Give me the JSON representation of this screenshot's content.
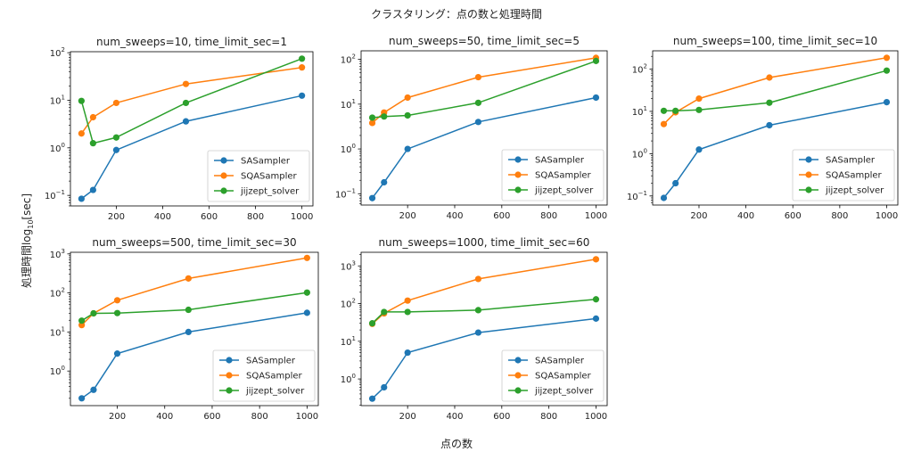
{
  "figure": {
    "title": "クラスタリング：点の数と処理時間",
    "xlabel": "点の数",
    "ylabel_main": "処理時間log",
    "ylabel_sub": "10",
    "ylabel_unit": "[sec]"
  },
  "colors": {
    "SASampler": "#1f77b4",
    "SQASampler": "#ff7f0e",
    "jijzept_solver": "#2ca02c"
  },
  "chart_data": [
    {
      "type": "line",
      "title": "num_sweeps=10, time_limit_sec=1",
      "yscale": "log",
      "ylim": [
        0.06,
        105
      ],
      "xlim": [
        2.5,
        1047.5
      ],
      "xticks": [
        200,
        400,
        600,
        800,
        1000
      ],
      "legend": "lower right",
      "x": [
        50,
        100,
        200,
        500,
        1000
      ],
      "series": [
        {
          "name": "SASampler",
          "values": [
            0.085,
            0.13,
            0.9,
            3.6,
            12.5
          ]
        },
        {
          "name": "SQASampler",
          "values": [
            2.0,
            4.4,
            8.8,
            22,
            49
          ]
        },
        {
          "name": "jijzept_solver",
          "values": [
            9.7,
            1.25,
            1.65,
            8.8,
            75
          ]
        }
      ]
    },
    {
      "type": "line",
      "title": "num_sweeps=50, time_limit_sec=5",
      "yscale": "log",
      "ylim": [
        0.056,
        155
      ],
      "xlim": [
        2.5,
        1047.5
      ],
      "xticks": [
        200,
        400,
        600,
        800,
        1000
      ],
      "legend": "lower right",
      "x": [
        50,
        100,
        200,
        500,
        1000
      ],
      "series": [
        {
          "name": "SASampler",
          "values": [
            0.08,
            0.18,
            1.0,
            4.0,
            14
          ]
        },
        {
          "name": "SQASampler",
          "values": [
            3.8,
            6.5,
            14,
            40,
            108
          ]
        },
        {
          "name": "jijzept_solver",
          "values": [
            5.0,
            5.3,
            5.6,
            10.7,
            92
          ]
        }
      ]
    },
    {
      "type": "line",
      "title": "num_sweeps=100, time_limit_sec=10",
      "yscale": "log",
      "ylim": [
        0.061,
        270
      ],
      "xlim": [
        2.5,
        1047.5
      ],
      "xticks": [
        200,
        400,
        600,
        800,
        1000
      ],
      "legend": "lower right",
      "x": [
        50,
        100,
        200,
        500,
        1000
      ],
      "series": [
        {
          "name": "SASampler",
          "values": [
            0.09,
            0.2,
            1.25,
            4.7,
            16.5
          ]
        },
        {
          "name": "SQASampler",
          "values": [
            5.0,
            9.5,
            20,
            63,
            185
          ]
        },
        {
          "name": "jijzept_solver",
          "values": [
            10.3,
            10.3,
            10.8,
            16,
            92
          ]
        }
      ]
    },
    {
      "type": "line",
      "title": "num_sweeps=500, time_limit_sec=30",
      "yscale": "log",
      "ylim": [
        0.13,
        1100
      ],
      "xlim": [
        2.5,
        1047.5
      ],
      "xticks": [
        200,
        400,
        600,
        800,
        1000
      ],
      "legend": "lower right",
      "x": [
        50,
        100,
        200,
        500,
        1000
      ],
      "series": [
        {
          "name": "SASampler",
          "values": [
            0.2,
            0.33,
            2.8,
            10,
            31
          ]
        },
        {
          "name": "SQASampler",
          "values": [
            15,
            30,
            65,
            235,
            790
          ]
        },
        {
          "name": "jijzept_solver",
          "values": [
            19.5,
            30,
            30.5,
            37,
            102
          ]
        }
      ]
    },
    {
      "type": "line",
      "title": "num_sweeps=1000, time_limit_sec=60",
      "yscale": "log",
      "ylim": [
        0.196,
        2300
      ],
      "xlim": [
        2.5,
        1047.5
      ],
      "xticks": [
        200,
        400,
        600,
        800,
        1000
      ],
      "legend": "lower right",
      "x": [
        50,
        100,
        200,
        500,
        1000
      ],
      "series": [
        {
          "name": "SASampler",
          "values": [
            0.3,
            0.6,
            5,
            17,
            40
          ]
        },
        {
          "name": "SQASampler",
          "values": [
            29,
            55,
            120,
            450,
            1500
          ]
        },
        {
          "name": "jijzept_solver",
          "values": [
            30,
            60,
            60,
            67,
            130
          ]
        }
      ]
    }
  ]
}
